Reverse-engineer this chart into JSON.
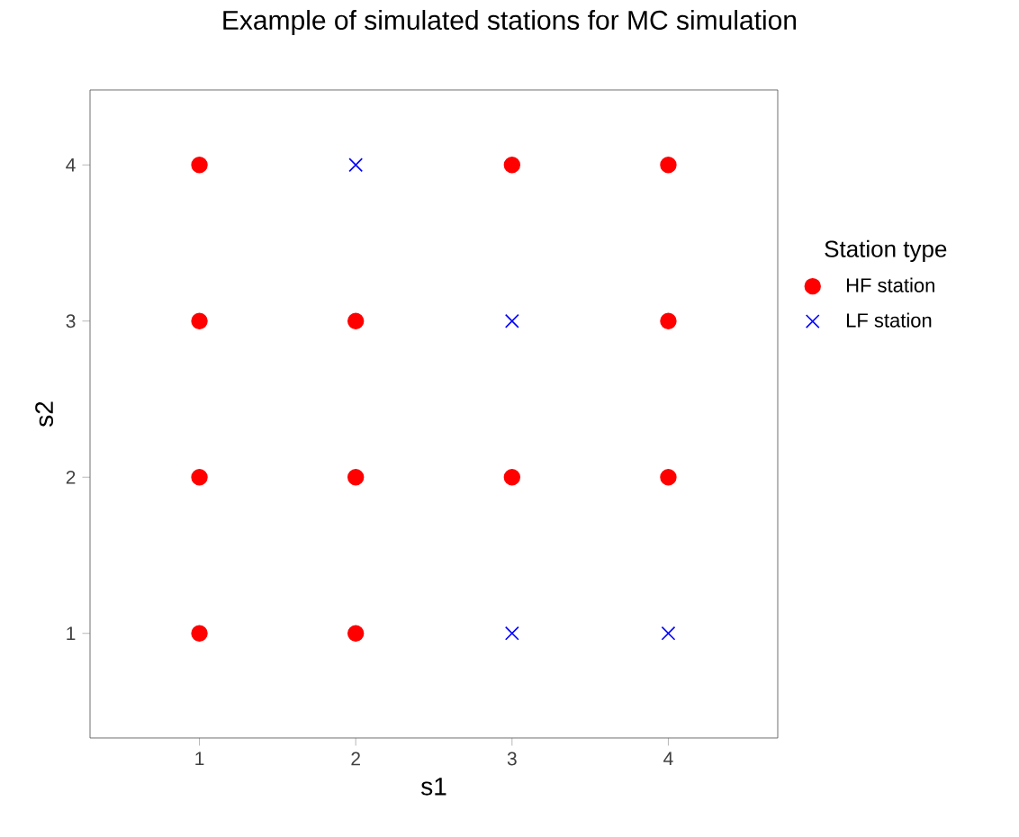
{
  "chart_data": {
    "type": "scatter",
    "title": "Example of simulated stations for MC simulation",
    "xlabel": "s1",
    "ylabel": "s2",
    "legend_title": "Station type",
    "xlim": [
      0.3,
      4.7
    ],
    "ylim": [
      0.33,
      4.48
    ],
    "xticks": [
      1,
      2,
      3,
      4
    ],
    "yticks": [
      1,
      2,
      3,
      4
    ],
    "grid": false,
    "legend": "right",
    "series": [
      {
        "name": "HF station",
        "color": "#ff0000",
        "marker": "circle",
        "x": [
          1,
          3,
          4,
          1,
          2,
          4,
          1,
          2,
          3,
          4,
          1,
          2
        ],
        "values": [
          4,
          4,
          4,
          3,
          3,
          3,
          2,
          2,
          2,
          2,
          1,
          1
        ]
      },
      {
        "name": "LF station",
        "color": "#0000ff",
        "marker": "cross",
        "x": [
          2,
          3,
          3,
          4
        ],
        "values": [
          4,
          3,
          1,
          1
        ]
      }
    ]
  }
}
